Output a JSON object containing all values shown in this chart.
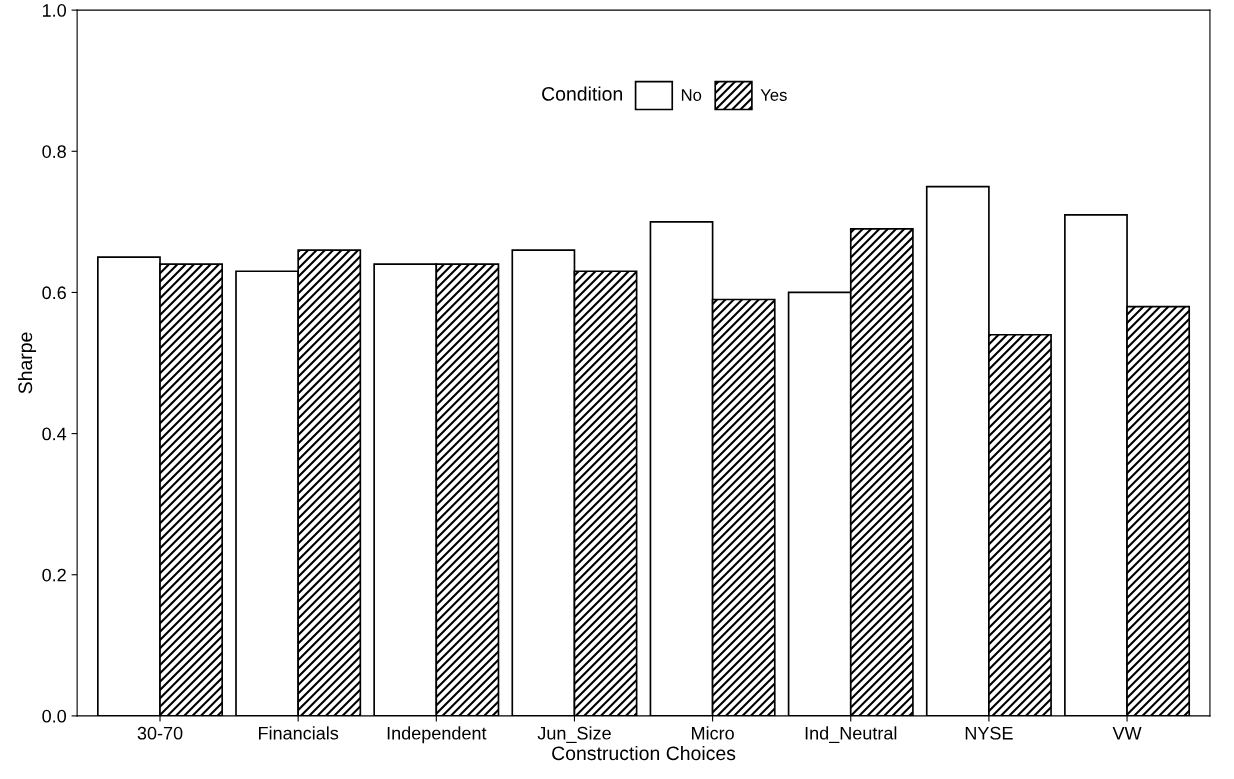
{
  "chart_data": {
    "type": "bar",
    "xlabel": "Construction Choices",
    "ylabel": "Sharpe",
    "legend_title": "Condition",
    "legend": "top",
    "categories": [
      "30-70",
      "Financials",
      "Independent",
      "Jun_Size",
      "Micro",
      "Ind_Neutral",
      "NYSE",
      "VW"
    ],
    "series": [
      {
        "name": "No",
        "color": "#ffffff",
        "values": [
          0.65,
          0.63,
          0.64,
          0.66,
          0.7,
          0.6,
          0.75,
          0.71
        ]
      },
      {
        "name": "Yes",
        "color": "#000000",
        "values": [
          0.64,
          0.66,
          0.64,
          0.63,
          0.59,
          0.69,
          0.54,
          0.58
        ]
      }
    ],
    "ylim": [
      0,
      1.0
    ],
    "yticks": [
      {
        "value": 0,
        "label": "0.0"
      },
      {
        "value": 0.2,
        "label": "0.2"
      },
      {
        "value": 0.4,
        "label": "0.4"
      },
      {
        "value": 0.6,
        "label": "0.6"
      },
      {
        "value": 0.8,
        "label": "0.8"
      },
      {
        "value": 1.0,
        "label": "1.0"
      }
    ],
    "grid": false
  }
}
